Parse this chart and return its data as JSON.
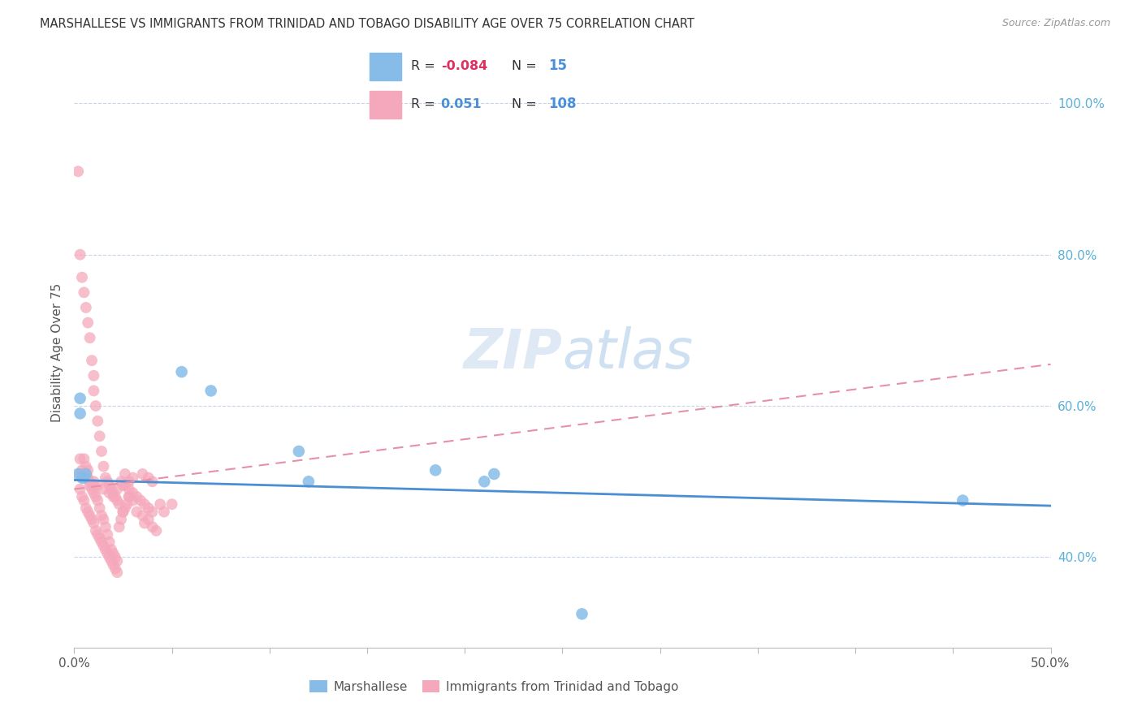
{
  "title": "MARSHALLESE VS IMMIGRANTS FROM TRINIDAD AND TOBAGO DISABILITY AGE OVER 75 CORRELATION CHART",
  "source": "Source: ZipAtlas.com",
  "ylabel": "Disability Age Over 75",
  "xlim": [
    0.0,
    0.5
  ],
  "ylim": [
    0.28,
    1.06
  ],
  "yticks": [
    0.4,
    0.6,
    0.8,
    1.0
  ],
  "yticklabels": [
    "40.0%",
    "60.0%",
    "80.0%",
    "100.0%"
  ],
  "xtick_positions": [
    0.0,
    0.05,
    0.1,
    0.15,
    0.2,
    0.25,
    0.3,
    0.35,
    0.4,
    0.45,
    0.5
  ],
  "blue_color": "#87bce8",
  "pink_color": "#f5a8bb",
  "blue_line_color": "#4a8fd4",
  "pink_line_color": "#f5a8bb",
  "legend_R_blue": "-0.084",
  "legend_N_blue": "15",
  "legend_R_pink": "0.051",
  "legend_N_pink": "108",
  "watermark": "ZIPatlas",
  "blue_line_x0": 0.0,
  "blue_line_x1": 0.5,
  "blue_line_y0": 0.502,
  "blue_line_y1": 0.468,
  "pink_line_x0": 0.0,
  "pink_line_x1": 0.5,
  "pink_line_y0": 0.49,
  "pink_line_y1": 0.655,
  "blue_points_x": [
    0.002,
    0.003,
    0.003,
    0.004,
    0.005,
    0.006,
    0.055,
    0.07,
    0.115,
    0.12,
    0.21,
    0.215,
    0.26,
    0.455,
    0.185
  ],
  "blue_points_y": [
    0.51,
    0.59,
    0.61,
    0.505,
    0.505,
    0.51,
    0.645,
    0.62,
    0.54,
    0.5,
    0.5,
    0.51,
    0.325,
    0.475,
    0.515
  ],
  "pink_points_x": [
    0.002,
    0.003,
    0.004,
    0.005,
    0.006,
    0.007,
    0.008,
    0.009,
    0.01,
    0.01,
    0.011,
    0.012,
    0.013,
    0.014,
    0.015,
    0.016,
    0.017,
    0.018,
    0.019,
    0.02,
    0.021,
    0.022,
    0.023,
    0.025,
    0.026,
    0.028,
    0.03,
    0.032,
    0.035,
    0.036,
    0.038,
    0.04,
    0.042,
    0.044,
    0.046,
    0.003,
    0.004,
    0.005,
    0.006,
    0.007,
    0.008,
    0.009,
    0.01,
    0.01,
    0.011,
    0.012,
    0.013,
    0.014,
    0.015,
    0.016,
    0.017,
    0.018,
    0.019,
    0.02,
    0.021,
    0.022,
    0.023,
    0.024,
    0.025,
    0.026,
    0.027,
    0.028,
    0.003,
    0.004,
    0.005,
    0.006,
    0.007,
    0.008,
    0.009,
    0.01,
    0.011,
    0.012,
    0.013,
    0.014,
    0.015,
    0.016,
    0.017,
    0.018,
    0.019,
    0.02,
    0.021,
    0.022,
    0.024,
    0.026,
    0.028,
    0.03,
    0.032,
    0.034,
    0.036,
    0.038,
    0.04,
    0.003,
    0.004,
    0.006,
    0.007,
    0.008,
    0.01,
    0.012,
    0.015,
    0.018,
    0.02,
    0.022,
    0.025,
    0.028,
    0.03,
    0.035,
    0.038,
    0.04,
    0.05
  ],
  "pink_points_y": [
    0.91,
    0.8,
    0.77,
    0.75,
    0.73,
    0.71,
    0.69,
    0.66,
    0.64,
    0.62,
    0.6,
    0.58,
    0.56,
    0.54,
    0.52,
    0.505,
    0.5,
    0.495,
    0.49,
    0.485,
    0.48,
    0.475,
    0.47,
    0.46,
    0.51,
    0.48,
    0.475,
    0.46,
    0.455,
    0.445,
    0.45,
    0.44,
    0.435,
    0.47,
    0.46,
    0.53,
    0.51,
    0.53,
    0.52,
    0.515,
    0.495,
    0.49,
    0.495,
    0.485,
    0.48,
    0.475,
    0.465,
    0.455,
    0.45,
    0.44,
    0.43,
    0.42,
    0.41,
    0.405,
    0.4,
    0.395,
    0.44,
    0.45,
    0.46,
    0.465,
    0.47,
    0.48,
    0.49,
    0.48,
    0.475,
    0.465,
    0.46,
    0.455,
    0.45,
    0.445,
    0.435,
    0.43,
    0.425,
    0.42,
    0.415,
    0.41,
    0.405,
    0.4,
    0.395,
    0.39,
    0.385,
    0.38,
    0.5,
    0.495,
    0.49,
    0.485,
    0.48,
    0.475,
    0.47,
    0.465,
    0.46,
    0.51,
    0.515,
    0.51,
    0.505,
    0.5,
    0.5,
    0.495,
    0.49,
    0.485,
    0.48,
    0.49,
    0.495,
    0.5,
    0.505,
    0.51,
    0.505,
    0.5,
    0.47
  ]
}
